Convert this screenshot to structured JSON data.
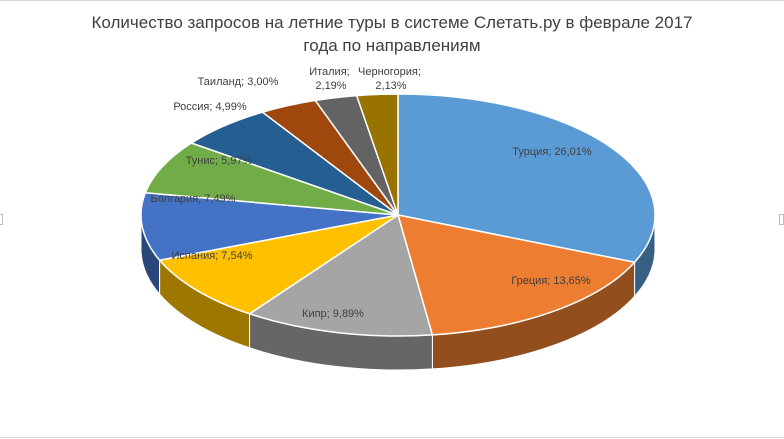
{
  "chart_data": {
    "type": "pie",
    "title_line1": "Количество запросов на летние туры в системе Слетать.ру в феврале 2017",
    "title_line2": "года по направлениям",
    "labels": [
      "Турция; 26,01%",
      "Греция; 13,65%",
      "Кипр; 9,89%",
      "Испания; 7,54%",
      "Болгария; 7,49%",
      "Тунис; 5,97%",
      "Россия; 4,99%",
      "Таиланд; 3,00%",
      "Италия; 2,19%",
      "Черногория; 2,13%"
    ],
    "italia_label_lines": [
      "Италия;",
      "2,19%"
    ],
    "montenegro_label_lines": [
      "Черногория;",
      "2,13%"
    ],
    "slices": [
      {
        "name": "Турция",
        "value": 26.01,
        "color": "#5b9bd5"
      },
      {
        "name": "Греция",
        "value": 13.65,
        "color": "#ed7d31"
      },
      {
        "name": "Кипр",
        "value": 9.89,
        "color": "#a5a5a5"
      },
      {
        "name": "Испания",
        "value": 7.54,
        "color": "#ffc000"
      },
      {
        "name": "Болгария",
        "value": 7.49,
        "color": "#4472c4"
      },
      {
        "name": "Тунис",
        "value": 5.97,
        "color": "#70ad47"
      },
      {
        "name": "Россия",
        "value": 4.99,
        "color": "#255e91"
      },
      {
        "name": "Таиланд",
        "value": 3.0,
        "color": "#9e480e"
      },
      {
        "name": "Италия",
        "value": 2.19,
        "color": "#636363"
      },
      {
        "name": "Черногория",
        "value": 2.13,
        "color": "#997300"
      }
    ],
    "legend": "none",
    "style": "3d-pie"
  }
}
